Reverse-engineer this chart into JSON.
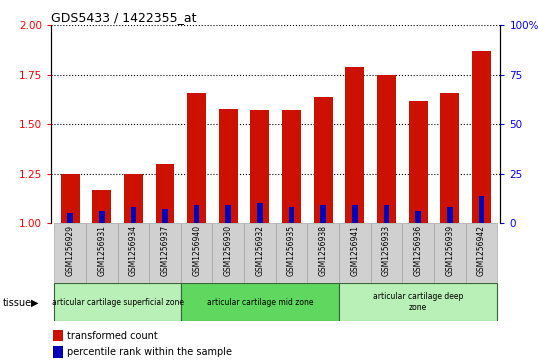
{
  "title": "GDS5433 / 1422355_at",
  "samples": [
    "GSM1256929",
    "GSM1256931",
    "GSM1256934",
    "GSM1256937",
    "GSM1256940",
    "GSM1256930",
    "GSM1256932",
    "GSM1256935",
    "GSM1256938",
    "GSM1256941",
    "GSM1256933",
    "GSM1256936",
    "GSM1256939",
    "GSM1256942"
  ],
  "red_values": [
    1.25,
    1.17,
    1.25,
    1.3,
    1.66,
    1.58,
    1.57,
    1.57,
    1.64,
    1.79,
    1.75,
    1.62,
    1.66,
    1.87
  ],
  "blue_percentile": [
    5,
    6,
    8,
    7,
    9,
    9,
    10,
    8,
    9,
    9,
    9,
    6,
    8,
    14
  ],
  "ylim_left": [
    1.0,
    2.0
  ],
  "ylim_right": [
    0,
    100
  ],
  "yticks_left": [
    1.0,
    1.25,
    1.5,
    1.75,
    2.0
  ],
  "yticks_right": [
    0,
    25,
    50,
    75,
    100
  ],
  "tissue_groups": [
    {
      "label": "articular cartilage superficial zone",
      "start": 0,
      "end": 4,
      "color": "#b8f0b8"
    },
    {
      "label": "articular cartilage mid zone",
      "start": 4,
      "end": 9,
      "color": "#60d860"
    },
    {
      "label": "articular cartilage deep\nzone",
      "start": 9,
      "end": 14,
      "color": "#b8f0b8"
    }
  ],
  "legend_red": "transformed count",
  "legend_blue": "percentile rank within the sample",
  "red_color": "#cc1100",
  "blue_color": "#0000bb",
  "bar_width": 0.6,
  "background_plot": "#ffffff",
  "tick_bg": "#d0d0d0"
}
